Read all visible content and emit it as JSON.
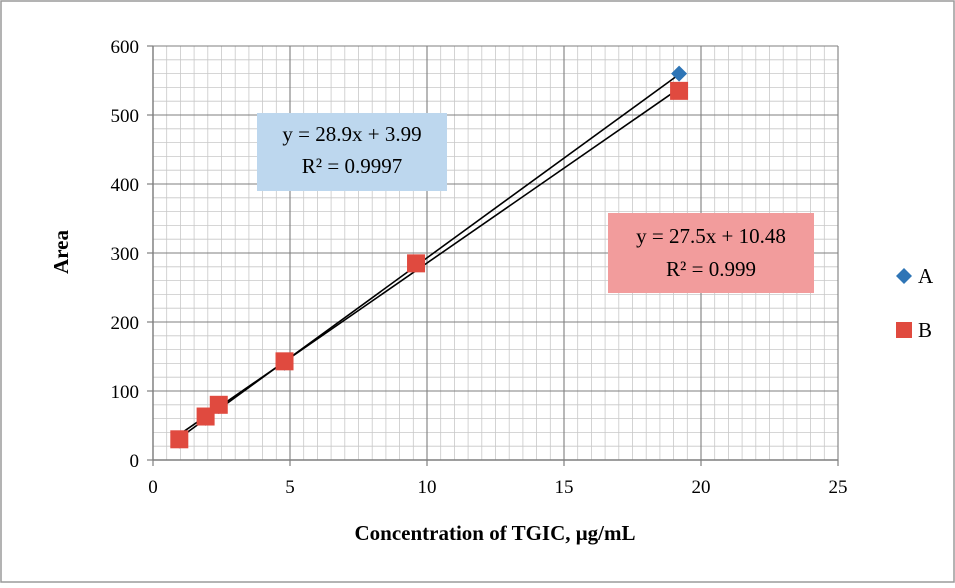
{
  "chart_data": {
    "type": "scatter",
    "xlabel": "Concentration of TGIC, μg/mL",
    "ylabel": "Area",
    "xlim": [
      0,
      25
    ],
    "ylim": [
      0,
      600
    ],
    "x_ticks": [
      0,
      5,
      10,
      15,
      20,
      25
    ],
    "y_ticks": [
      0,
      100,
      200,
      300,
      400,
      500,
      600
    ],
    "x_minor_step": 0.5,
    "y_minor_step": 20,
    "grid": true,
    "legend_position": "right",
    "series": [
      {
        "name": "A",
        "marker": "diamond",
        "color": "#2E75B6",
        "x": [
          0.96,
          1.92,
          2.4,
          4.8,
          9.6,
          19.2
        ],
        "y": [
          28,
          61,
          78,
          141,
          284,
          560
        ],
        "trendline": {
          "slope": 28.9,
          "intercept": 3.99,
          "equation": "y = 28.9x + 3.99",
          "r2": "R² = 0.9997",
          "box_color": "#BDD7EE"
        }
      },
      {
        "name": "B",
        "marker": "square",
        "color": "#E04A3F",
        "x": [
          0.96,
          1.92,
          2.4,
          4.8,
          9.6,
          19.2
        ],
        "y": [
          30,
          63,
          80,
          143,
          285,
          535
        ],
        "trendline": {
          "slope": 27.5,
          "intercept": 10.48,
          "equation": "y = 27.5x + 10.48",
          "r2": "R² = 0.999",
          "box_color": "#F29C9C"
        }
      }
    ]
  }
}
